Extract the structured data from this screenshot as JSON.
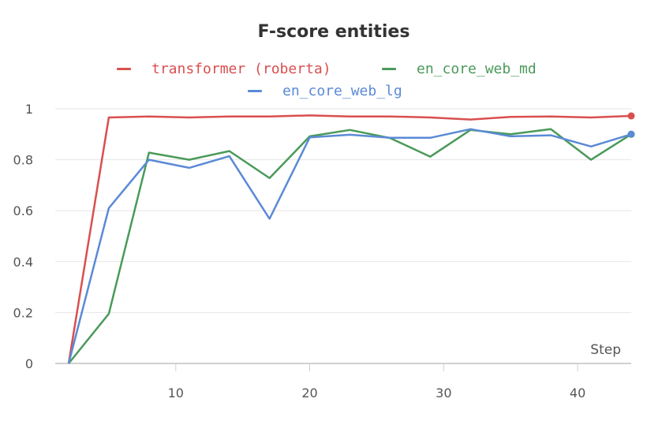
{
  "chart_data": {
    "type": "line",
    "title": "F-score entities",
    "xlabel": "Step",
    "ylabel": "",
    "xlim": [
      1,
      44
    ],
    "ylim": [
      0,
      1
    ],
    "x_ticks": [
      10,
      20,
      30,
      40
    ],
    "y_ticks": [
      0,
      0.2,
      0.4,
      0.6,
      0.8,
      1
    ],
    "y_tick_labels": [
      "0",
      "0.2",
      "0.4",
      "0.6",
      "0.8",
      "1"
    ],
    "grid": true,
    "legend_position": "top",
    "series": [
      {
        "name": "transformer (roberta)",
        "color": "#d94f4f",
        "x": [
          2,
          5,
          8,
          11,
          14,
          17,
          20,
          23,
          26,
          29,
          32,
          35,
          38,
          41,
          44
        ],
        "y": [
          0.0,
          0.966,
          0.97,
          0.966,
          0.97,
          0.97,
          0.974,
          0.97,
          0.97,
          0.966,
          0.958,
          0.968,
          0.97,
          0.966,
          0.972
        ]
      },
      {
        "name": "en_core_web_md",
        "color": "#4a9a5a",
        "x": [
          2,
          5,
          8,
          11,
          14,
          17,
          20,
          23,
          26,
          29,
          32,
          35,
          38,
          41,
          44
        ],
        "y": [
          0.0,
          0.195,
          0.828,
          0.8,
          0.834,
          0.728,
          0.892,
          0.917,
          0.885,
          0.812,
          0.917,
          0.9,
          0.92,
          0.8,
          0.9
        ]
      },
      {
        "name": "en_core_web_lg",
        "color": "#5b8ad6",
        "x": [
          2,
          5,
          8,
          11,
          14,
          17,
          20,
          23,
          26,
          29,
          32,
          35,
          38,
          41,
          44
        ],
        "y": [
          0.0,
          0.61,
          0.8,
          0.768,
          0.814,
          0.568,
          0.888,
          0.898,
          0.886,
          0.886,
          0.92,
          0.892,
          0.896,
          0.852,
          0.9
        ]
      }
    ]
  }
}
